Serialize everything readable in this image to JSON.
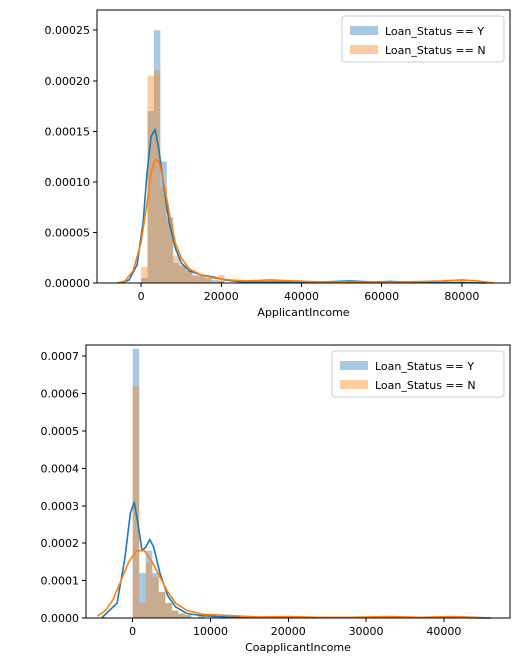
{
  "colors": {
    "series_y": "#1f77b4",
    "series_n": "#ff7f0e"
  },
  "chart_data": [
    {
      "type": "histogram-kde",
      "xlabel": "ApplicantIncome",
      "xlim": [
        -11000,
        92000
      ],
      "ylim": [
        0,
        0.00027
      ],
      "xticks": [
        0,
        20000,
        40000,
        60000,
        80000
      ],
      "xtick_labels": [
        "0",
        "20000",
        "40000",
        "60000",
        "80000"
      ],
      "yticks": [
        0,
        5e-05,
        0.0001,
        0.00015,
        0.0002,
        0.00025
      ],
      "ytick_labels": [
        "0.00000",
        "0.00005",
        "0.00010",
        "0.00015",
        "0.00020",
        "0.00025"
      ],
      "legend_position": "top-right",
      "grid": false,
      "bin_width": 1600,
      "series": [
        {
          "name": "Loan_Status == Y",
          "color": "#1f77b4",
          "hist": [
            [
              800,
              5e-06
            ],
            [
              2400,
              0.00017
            ],
            [
              4000,
              0.00025
            ],
            [
              5600,
              0.00012
            ],
            [
              7200,
              6.5e-05
            ],
            [
              8800,
              2e-05
            ],
            [
              10400,
              1.7e-05
            ],
            [
              12000,
              1.2e-05
            ],
            [
              13600,
              7e-06
            ],
            [
              15200,
              8e-06
            ],
            [
              16800,
              5e-06
            ],
            [
              18400,
              3e-06
            ],
            [
              20000,
              2e-06
            ],
            [
              50400,
              2e-06
            ],
            [
              62400,
              1e-06
            ],
            [
              79200,
              1e-06
            ]
          ],
          "kde": [
            [
              -5000,
              0
            ],
            [
              -3000,
              3e-06
            ],
            [
              -1000,
              1.8e-05
            ],
            [
              500,
              6e-05
            ],
            [
              1500,
              0.00011
            ],
            [
              2500,
              0.000145
            ],
            [
              3500,
              0.000152
            ],
            [
              4500,
              0.00013
            ],
            [
              5500,
              0.0001
            ],
            [
              7000,
              6e-05
            ],
            [
              8500,
              3.5e-05
            ],
            [
              10000,
              2e-05
            ],
            [
              12000,
              1.2e-05
            ],
            [
              15000,
              8e-06
            ],
            [
              18000,
              6e-06
            ],
            [
              21000,
              3e-06
            ],
            [
              25000,
              1e-06
            ],
            [
              35000,
              1e-06
            ],
            [
              45000,
              1e-06
            ],
            [
              52000,
              2e-06
            ],
            [
              58000,
              1e-06
            ],
            [
              62000,
              1.5e-06
            ],
            [
              70000,
              5e-07
            ],
            [
              80000,
              5e-07
            ],
            [
              86000,
              0
            ]
          ]
        },
        {
          "name": "Loan_Status == N",
          "color": "#ff7f0e",
          "hist": [
            [
              800,
              1.6e-05
            ],
            [
              2400,
              0.000205
            ],
            [
              4000,
              0.00021
            ],
            [
              5600,
              9.5e-05
            ],
            [
              7200,
              6e-05
            ],
            [
              8800,
              2.7e-05
            ],
            [
              10400,
              1.8e-05
            ],
            [
              12000,
              1.2e-05
            ],
            [
              13600,
              8e-06
            ],
            [
              15200,
              7e-06
            ],
            [
              16800,
              5e-06
            ],
            [
              20000,
              8e-06
            ],
            [
              32800,
              4e-06
            ],
            [
              39200,
              3e-06
            ],
            [
              80000,
              4e-06
            ]
          ],
          "kde": [
            [
              -6000,
              0
            ],
            [
              -4000,
              2e-06
            ],
            [
              -2000,
              1.2e-05
            ],
            [
              0,
              4e-05
            ],
            [
              1500,
              8e-05
            ],
            [
              2500,
              0.00011
            ],
            [
              3500,
              0.000122
            ],
            [
              4500,
              0.00012
            ],
            [
              5500,
              0.000102
            ],
            [
              7000,
              7e-05
            ],
            [
              8500,
              4e-05
            ],
            [
              10000,
              2.5e-05
            ],
            [
              12000,
              1.4e-05
            ],
            [
              15000,
              8e-06
            ],
            [
              18000,
              5e-06
            ],
            [
              22000,
              3e-06
            ],
            [
              26000,
              2e-06
            ],
            [
              32000,
              3e-06
            ],
            [
              38000,
              2e-06
            ],
            [
              45000,
              1e-06
            ],
            [
              55000,
              1e-06
            ],
            [
              65000,
              1e-06
            ],
            [
              75000,
              2e-06
            ],
            [
              80000,
              3e-06
            ],
            [
              84000,
              2e-06
            ],
            [
              88000,
              0
            ]
          ]
        }
      ]
    },
    {
      "type": "histogram-kde",
      "xlabel": "CoapplicantIncome",
      "xlim": [
        -6000,
        48500
      ],
      "ylim": [
        0,
        0.00073
      ],
      "xticks": [
        0,
        10000,
        20000,
        30000,
        40000
      ],
      "xtick_labels": [
        "0",
        "10000",
        "20000",
        "30000",
        "40000"
      ],
      "yticks": [
        0,
        0.0001,
        0.0002,
        0.0003,
        0.0004,
        0.0005,
        0.0006,
        0.0007
      ],
      "ytick_labels": [
        "0.0000",
        "0.0001",
        "0.0002",
        "0.0003",
        "0.0004",
        "0.0005",
        "0.0006",
        "0.0007"
      ],
      "legend_position": "top-right",
      "grid": false,
      "bin_width": 840,
      "series": [
        {
          "name": "Loan_Status == Y",
          "color": "#1f77b4",
          "hist": [
            [
              420,
              0.00072
            ],
            [
              1260,
              0.00012
            ],
            [
              2100,
              0.00018
            ],
            [
              2940,
              0.00012
            ],
            [
              3780,
              7e-05
            ],
            [
              4620,
              4e-05
            ],
            [
              5460,
              2e-05
            ],
            [
              6300,
              1.2e-05
            ],
            [
              7140,
              8e-06
            ],
            [
              8820,
              5e-06
            ],
            [
              10500,
              3e-06
            ]
          ],
          "kde": [
            [
              -4000,
              0
            ],
            [
              -2000,
              4e-05
            ],
            [
              -1000,
              0.00016
            ],
            [
              -300,
              0.00028
            ],
            [
              200,
              0.00031
            ],
            [
              700,
              0.00025
            ],
            [
              1200,
              0.00018
            ],
            [
              1700,
              0.00019
            ],
            [
              2200,
              0.00021
            ],
            [
              2700,
              0.00019
            ],
            [
              3500,
              0.00012
            ],
            [
              4500,
              6e-05
            ],
            [
              5500,
              3e-05
            ],
            [
              7000,
              1.2e-05
            ],
            [
              9000,
              6e-06
            ],
            [
              12000,
              3e-06
            ],
            [
              16000,
              2e-06
            ],
            [
              20000,
              1e-06
            ],
            [
              30000,
              1e-06
            ],
            [
              40000,
              1e-06
            ],
            [
              46000,
              0
            ]
          ]
        },
        {
          "name": "Loan_Status == N",
          "color": "#ff7f0e",
          "hist": [
            [
              420,
              0.00062
            ],
            [
              1260,
              4e-05
            ],
            [
              2100,
              0.00015
            ],
            [
              2940,
              0.00011
            ],
            [
              3780,
              7e-05
            ],
            [
              4620,
              4e-05
            ],
            [
              5460,
              2e-05
            ],
            [
              6300,
              1.2e-05
            ],
            [
              7140,
              8e-06
            ],
            [
              11760,
              8e-06
            ],
            [
              20160,
              4e-06
            ],
            [
              33600,
              4e-06
            ],
            [
              41160,
              4e-06
            ]
          ],
          "kde": [
            [
              -4500,
              5e-06
            ],
            [
              -3500,
              2e-05
            ],
            [
              -2500,
              5e-05
            ],
            [
              -1500,
              0.0001
            ],
            [
              -500,
              0.00015
            ],
            [
              500,
              0.00018
            ],
            [
              1500,
              0.00018
            ],
            [
              2500,
              0.00015
            ],
            [
              3500,
              0.00011
            ],
            [
              4500,
              7e-05
            ],
            [
              5500,
              4e-05
            ],
            [
              7000,
              2e-05
            ],
            [
              9000,
              1e-05
            ],
            [
              11000,
              8e-06
            ],
            [
              13000,
              6e-06
            ],
            [
              16000,
              3e-06
            ],
            [
              20000,
              4e-06
            ],
            [
              24000,
              2e-06
            ],
            [
              28000,
              2e-06
            ],
            [
              33000,
              4e-06
            ],
            [
              37000,
              2e-06
            ],
            [
              41000,
              4e-06
            ],
            [
              44000,
              2e-06
            ],
            [
              46000,
              0
            ]
          ]
        }
      ]
    }
  ]
}
